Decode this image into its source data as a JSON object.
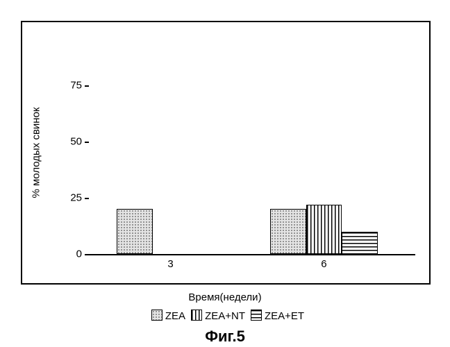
{
  "chart": {
    "type": "bar",
    "ylabel": "% молодых свинок",
    "xlabel": "Время(недели)",
    "ylim": [
      0,
      100
    ],
    "yticks": [
      0,
      25,
      50,
      75
    ],
    "xcats": [
      "3",
      "6"
    ],
    "series": [
      {
        "key": "ZEA",
        "label": "ZEA",
        "fillClass": "fill-dots",
        "values": {
          "3": 20,
          "6": 20
        }
      },
      {
        "key": "ZEA_NT",
        "label": "ZEA+NT",
        "fillClass": "fill-vert",
        "values": {
          "3": 0,
          "6": 22
        }
      },
      {
        "key": "ZEA_ET",
        "label": "ZEA+ET",
        "fillClass": "fill-horiz",
        "values": {
          "3": 0,
          "6": 10
        }
      }
    ],
    "xcenters_pct": {
      "3": 25,
      "6": 72
    },
    "bar_width_pct": 11,
    "label_fontsize": 15
  },
  "caption": "Фиг.5"
}
